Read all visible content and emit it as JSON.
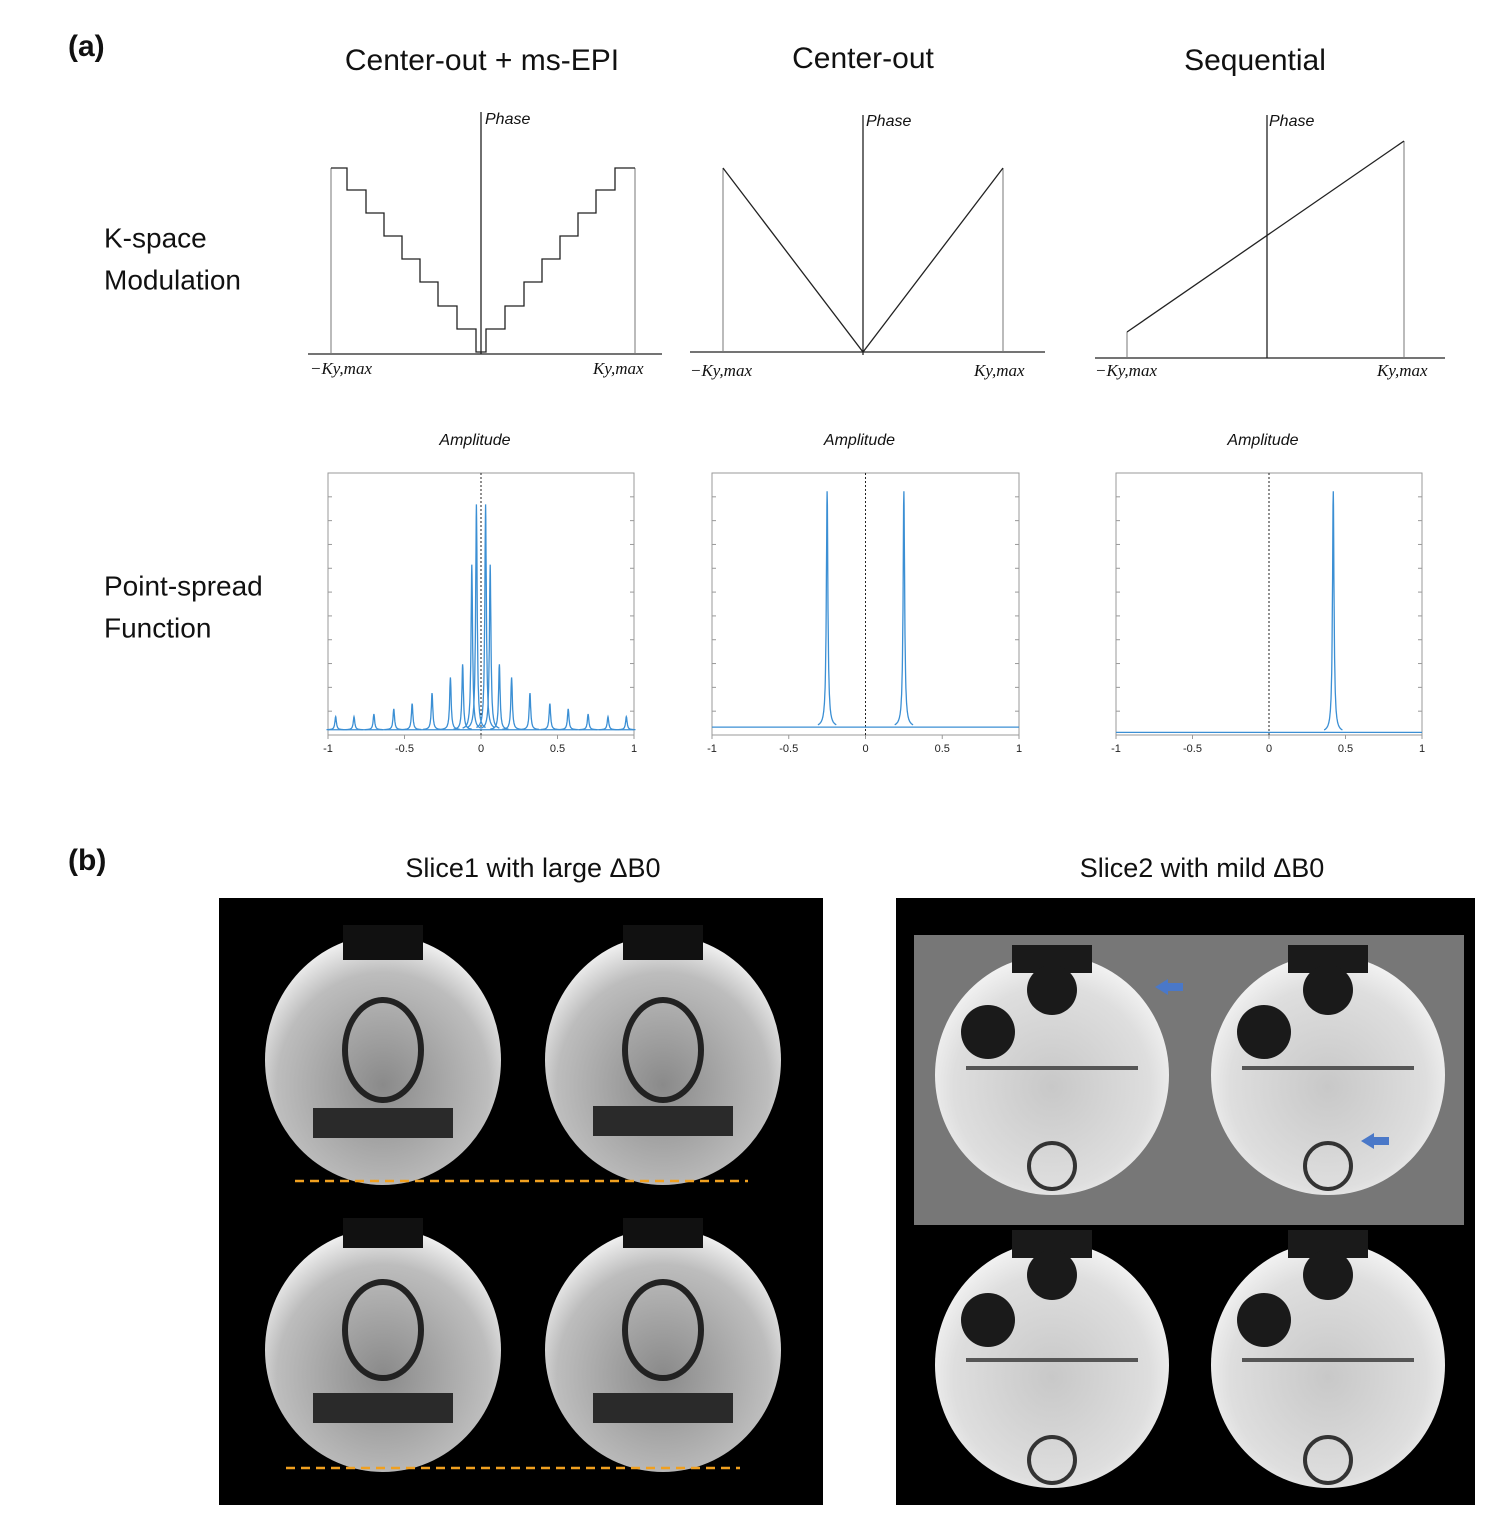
{
  "panel_a": {
    "label": "(a)",
    "columns": [
      "Center-out + ms-EPI",
      "Center-out",
      "Sequential"
    ],
    "kspace_label": [
      "K-space",
      "Modulation"
    ],
    "psf_label": [
      "Point-spread",
      "Function"
    ],
    "kspace": {
      "y_label": "Phase",
      "x_min_label": "−Ky,max",
      "x_max_label": "Ky,max"
    },
    "psf": {
      "y_label": "Amplitude",
      "xlim": [
        -1,
        1
      ],
      "xticks": [
        -1,
        -0.5,
        0,
        0.5,
        1
      ],
      "color": "#3b8fd4",
      "plots": [
        {
          "baseline": 0.02,
          "peaks": [
            {
              "x": -0.95,
              "h": 0.07
            },
            {
              "x": -0.83,
              "h": 0.07
            },
            {
              "x": -0.7,
              "h": 0.08
            },
            {
              "x": -0.57,
              "h": 0.1
            },
            {
              "x": -0.45,
              "h": 0.12
            },
            {
              "x": -0.32,
              "h": 0.16
            },
            {
              "x": -0.2,
              "h": 0.22
            },
            {
              "x": -0.12,
              "h": 0.27
            },
            {
              "x": -0.06,
              "h": 0.65
            },
            {
              "x": -0.03,
              "h": 0.88
            },
            {
              "x": 0.03,
              "h": 0.88
            },
            {
              "x": 0.06,
              "h": 0.65
            },
            {
              "x": 0.12,
              "h": 0.27
            },
            {
              "x": 0.2,
              "h": 0.22
            },
            {
              "x": 0.32,
              "h": 0.16
            },
            {
              "x": 0.45,
              "h": 0.12
            },
            {
              "x": 0.57,
              "h": 0.1
            },
            {
              "x": 0.7,
              "h": 0.08
            },
            {
              "x": 0.83,
              "h": 0.07
            },
            {
              "x": 0.95,
              "h": 0.07
            }
          ]
        },
        {
          "baseline": 0.03,
          "peaks": [
            {
              "x": -0.25,
              "h": 0.93
            },
            {
              "x": 0.25,
              "h": 0.93
            }
          ]
        },
        {
          "baseline": 0.01,
          "peaks": [
            {
              "x": 0.42,
              "h": 0.93
            }
          ]
        }
      ]
    }
  },
  "panel_b": {
    "label": "(b)",
    "titles": [
      "Slice1 with large ΔB0",
      "Slice2 with mild ΔB0"
    ]
  }
}
